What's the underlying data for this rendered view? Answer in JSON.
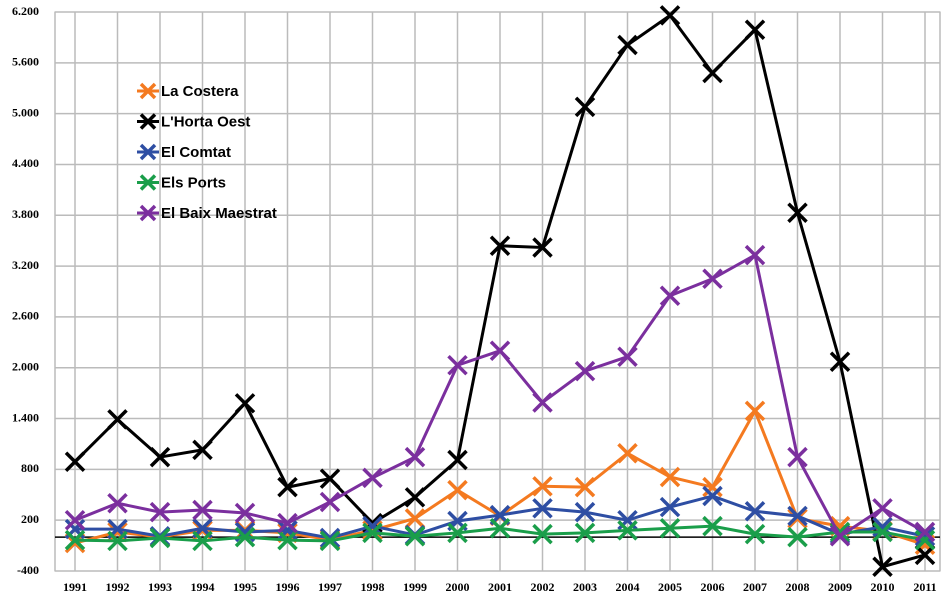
{
  "chart_data": {
    "type": "line",
    "categories": [
      "1991",
      "1992",
      "1993",
      "1994",
      "1995",
      "1996",
      "1997",
      "1998",
      "1999",
      "2000",
      "2001",
      "2002",
      "2003",
      "2004",
      "2005",
      "2006",
      "2007",
      "2008",
      "2009",
      "2010",
      "2011"
    ],
    "series": [
      {
        "name": "La Costera",
        "color": "#f47a20",
        "values": [
          -70,
          60,
          0,
          80,
          80,
          50,
          -30,
          80,
          220,
          555,
          250,
          600,
          590,
          990,
          710,
          590,
          1490,
          220,
          130,
          70,
          -90
        ]
      },
      {
        "name": "L'Horta Oest",
        "color": "#000000",
        "values": [
          890,
          1390,
          945,
          1030,
          1580,
          590,
          690,
          165,
          470,
          910,
          3440,
          3420,
          5080,
          5810,
          6160,
          5480,
          5990,
          3830,
          2070,
          -350,
          -210
        ]
      },
      {
        "name": "El Comtat",
        "color": "#2e4ea3",
        "values": [
          95,
          95,
          10,
          105,
          60,
          80,
          -10,
          130,
          25,
          190,
          260,
          340,
          295,
          200,
          355,
          485,
          305,
          250,
          35,
          120,
          10
        ]
      },
      {
        "name": "Els Ports",
        "color": "#1a9e4a",
        "values": [
          -35,
          -45,
          -10,
          -45,
          0,
          -35,
          -45,
          50,
          10,
          50,
          105,
          35,
          50,
          80,
          105,
          130,
          35,
          0,
          60,
          60,
          -35
        ]
      },
      {
        "name": "El Baix Maestrat",
        "color": "#7b2f9e",
        "values": [
          200,
          400,
          295,
          320,
          285,
          165,
          415,
          700,
          945,
          2030,
          2200,
          1590,
          1960,
          2130,
          2850,
          3050,
          3330,
          945,
          10,
          340,
          60
        ]
      }
    ],
    "ylim": [
      -400,
      6200
    ],
    "yticks": [
      -400,
      200,
      800,
      {
        "value": 1400,
        "label": "1.400"
      },
      {
        "value": 2000,
        "label": "2.000"
      },
      {
        "value": 2600,
        "label": "2.600"
      },
      {
        "value": 3200,
        "label": "3.200"
      },
      {
        "value": 3800,
        "label": "3.800"
      },
      {
        "value": 4400,
        "label": "4.400"
      },
      {
        "value": 5000,
        "label": "5.000"
      },
      {
        "value": 5600,
        "label": "5.600"
      },
      {
        "value": 6200,
        "label": "6.200"
      }
    ],
    "grid": true,
    "legend": "upper left"
  }
}
